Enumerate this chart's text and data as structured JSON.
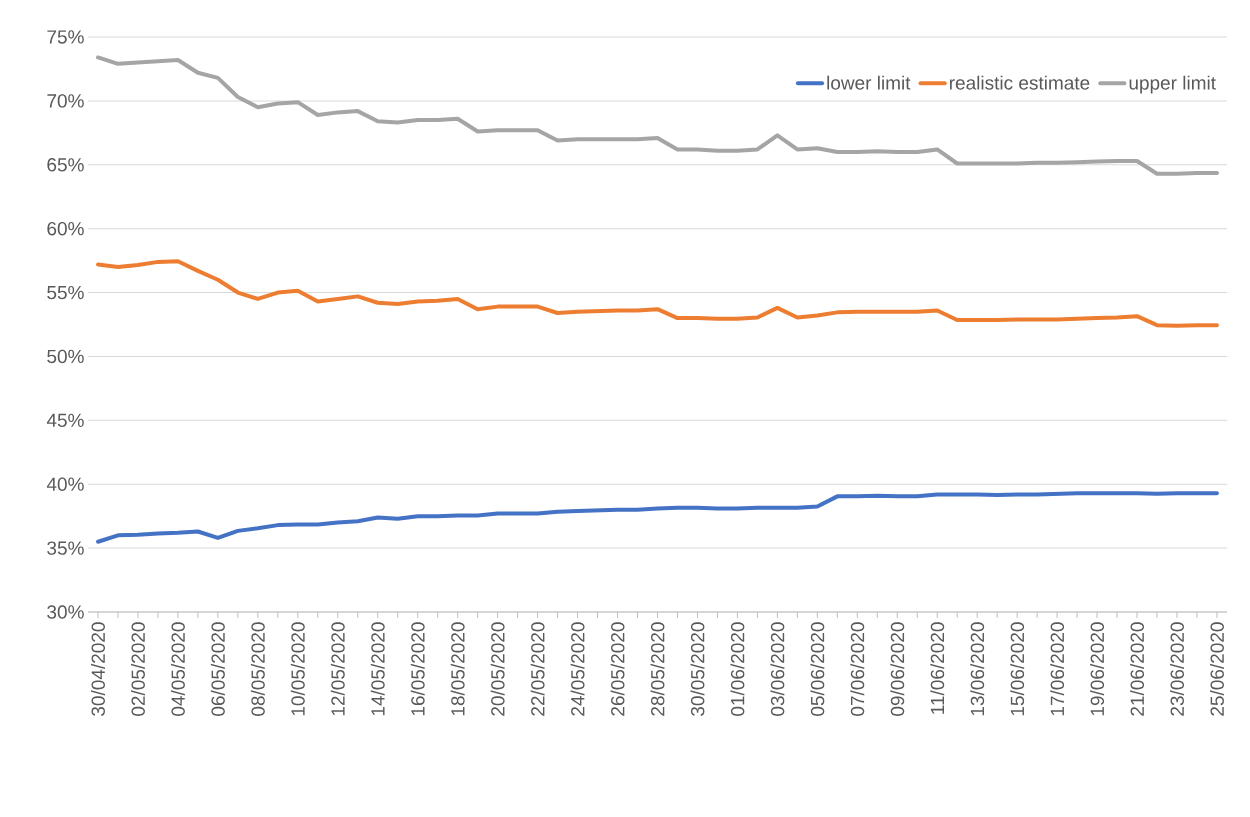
{
  "chart_data": {
    "type": "line",
    "categories": [
      "30/04/2020",
      null,
      "02/05/2020",
      null,
      "04/05/2020",
      null,
      "06/05/2020",
      null,
      "08/05/2020",
      null,
      "10/05/2020",
      null,
      "12/05/2020",
      null,
      "14/05/2020",
      null,
      "16/05/2020",
      null,
      "18/05/2020",
      null,
      "20/05/2020",
      null,
      "22/05/2020",
      null,
      "24/05/2020",
      null,
      "26/05/2020",
      null,
      "28/05/2020",
      null,
      "30/05/2020",
      null,
      "01/06/2020",
      null,
      "03/06/2020",
      null,
      "05/06/2020",
      null,
      "07/06/2020",
      null,
      "09/06/2020",
      null,
      "11/06/2020",
      null,
      "13/06/2020",
      null,
      "15/06/2020",
      null,
      "17/06/2020",
      null,
      "19/06/2020",
      null,
      "21/06/2020",
      null,
      "23/06/2020",
      null,
      "25/06/2020"
    ],
    "series": [
      {
        "name": "lower limit",
        "color": "#4472c4",
        "values": [
          35.5,
          36.0,
          36.05,
          36.15,
          36.2,
          36.3,
          35.8,
          36.35,
          36.55,
          36.8,
          36.85,
          36.85,
          37.0,
          37.1,
          37.4,
          37.3,
          37.5,
          37.5,
          37.55,
          37.55,
          37.7,
          37.7,
          37.7,
          37.85,
          37.9,
          37.95,
          38.0,
          38.0,
          38.1,
          38.15,
          38.15,
          38.1,
          38.1,
          38.15,
          38.15,
          38.15,
          38.25,
          39.05,
          39.05,
          39.1,
          39.05,
          39.05,
          39.2,
          39.2,
          39.2,
          39.15,
          39.2,
          39.2,
          39.25,
          39.3,
          39.3,
          39.3,
          39.3,
          39.25,
          39.3,
          39.3,
          39.3
        ]
      },
      {
        "name": "realistic estimate",
        "color": "#ed7d31",
        "values": [
          57.2,
          57.0,
          57.15,
          57.4,
          57.45,
          56.7,
          56.0,
          55.0,
          54.5,
          55.0,
          55.15,
          54.3,
          54.5,
          54.7,
          54.2,
          54.1,
          54.3,
          54.35,
          54.5,
          53.7,
          53.9,
          53.9,
          53.9,
          53.4,
          53.5,
          53.55,
          53.6,
          53.6,
          53.7,
          53.0,
          53.0,
          52.95,
          52.95,
          53.05,
          53.8,
          53.05,
          53.2,
          53.45,
          53.5,
          53.5,
          53.5,
          53.5,
          53.6,
          52.85,
          52.85,
          52.85,
          52.9,
          52.9,
          52.9,
          52.95,
          53.0,
          53.05,
          53.15,
          52.45,
          52.4,
          52.45,
          52.45
        ]
      },
      {
        "name": "upper limit",
        "color": "#a5a5a5",
        "values": [
          73.4,
          72.9,
          73.0,
          73.1,
          73.2,
          72.2,
          71.8,
          70.3,
          69.5,
          69.8,
          69.9,
          68.9,
          69.1,
          69.2,
          68.4,
          68.3,
          68.5,
          68.5,
          68.6,
          67.6,
          67.7,
          67.7,
          67.7,
          66.9,
          67.0,
          67.0,
          67.0,
          67.0,
          67.1,
          66.2,
          66.2,
          66.1,
          66.1,
          66.2,
          67.3,
          66.2,
          66.3,
          66.0,
          66.0,
          66.05,
          66.0,
          66.0,
          66.2,
          65.1,
          65.1,
          65.1,
          65.1,
          65.15,
          65.15,
          65.2,
          65.25,
          65.3,
          65.3,
          64.3,
          64.3,
          64.35,
          64.35
        ]
      }
    ],
    "ylim": [
      30,
      75
    ],
    "yticks": [
      {
        "value": 30,
        "label": "30%"
      },
      {
        "value": 35,
        "label": "35%"
      },
      {
        "value": 40,
        "label": "40%"
      },
      {
        "value": 45,
        "label": "45%"
      },
      {
        "value": 50,
        "label": "50%"
      },
      {
        "value": 55,
        "label": "55%"
      },
      {
        "value": 60,
        "label": "60%"
      },
      {
        "value": 65,
        "label": "65%"
      },
      {
        "value": 70,
        "label": "70%"
      },
      {
        "value": 75,
        "label": "75%"
      }
    ],
    "grid": "y",
    "legend": "top right",
    "marker": "none",
    "line_style": "solid"
  }
}
